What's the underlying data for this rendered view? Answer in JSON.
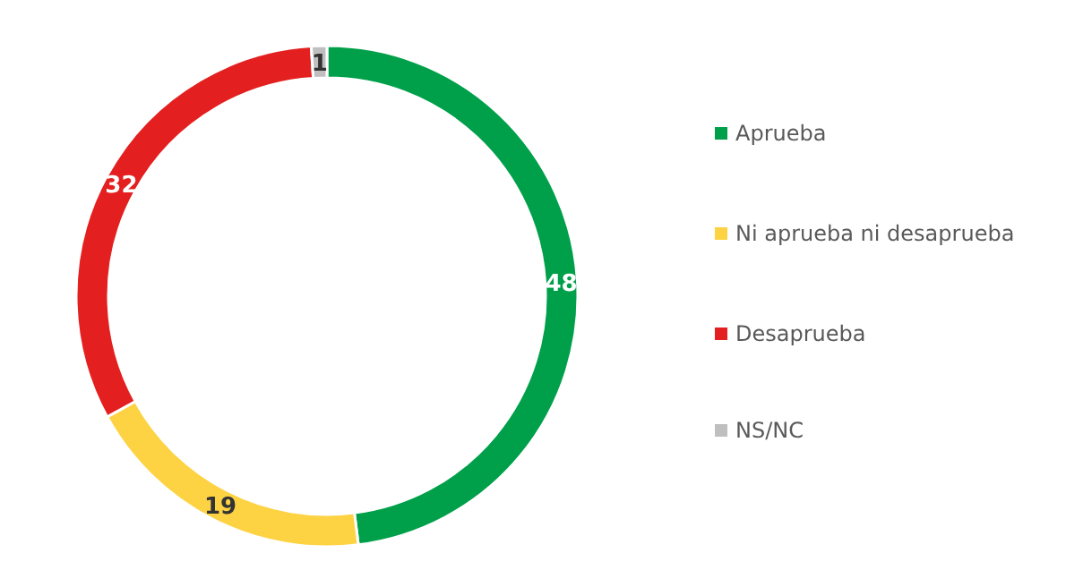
{
  "chart_data": {
    "type": "donut",
    "categories": [
      "Aprueba",
      "Ni aprueba ni desaprueba",
      "Desaprueba",
      "NS/NC"
    ],
    "values": [
      48,
      19,
      32,
      1
    ],
    "colors": [
      "#00a04a",
      "#fdd344",
      "#e3201f",
      "#bfbfbf"
    ],
    "data_labels": true,
    "legend": "right"
  }
}
